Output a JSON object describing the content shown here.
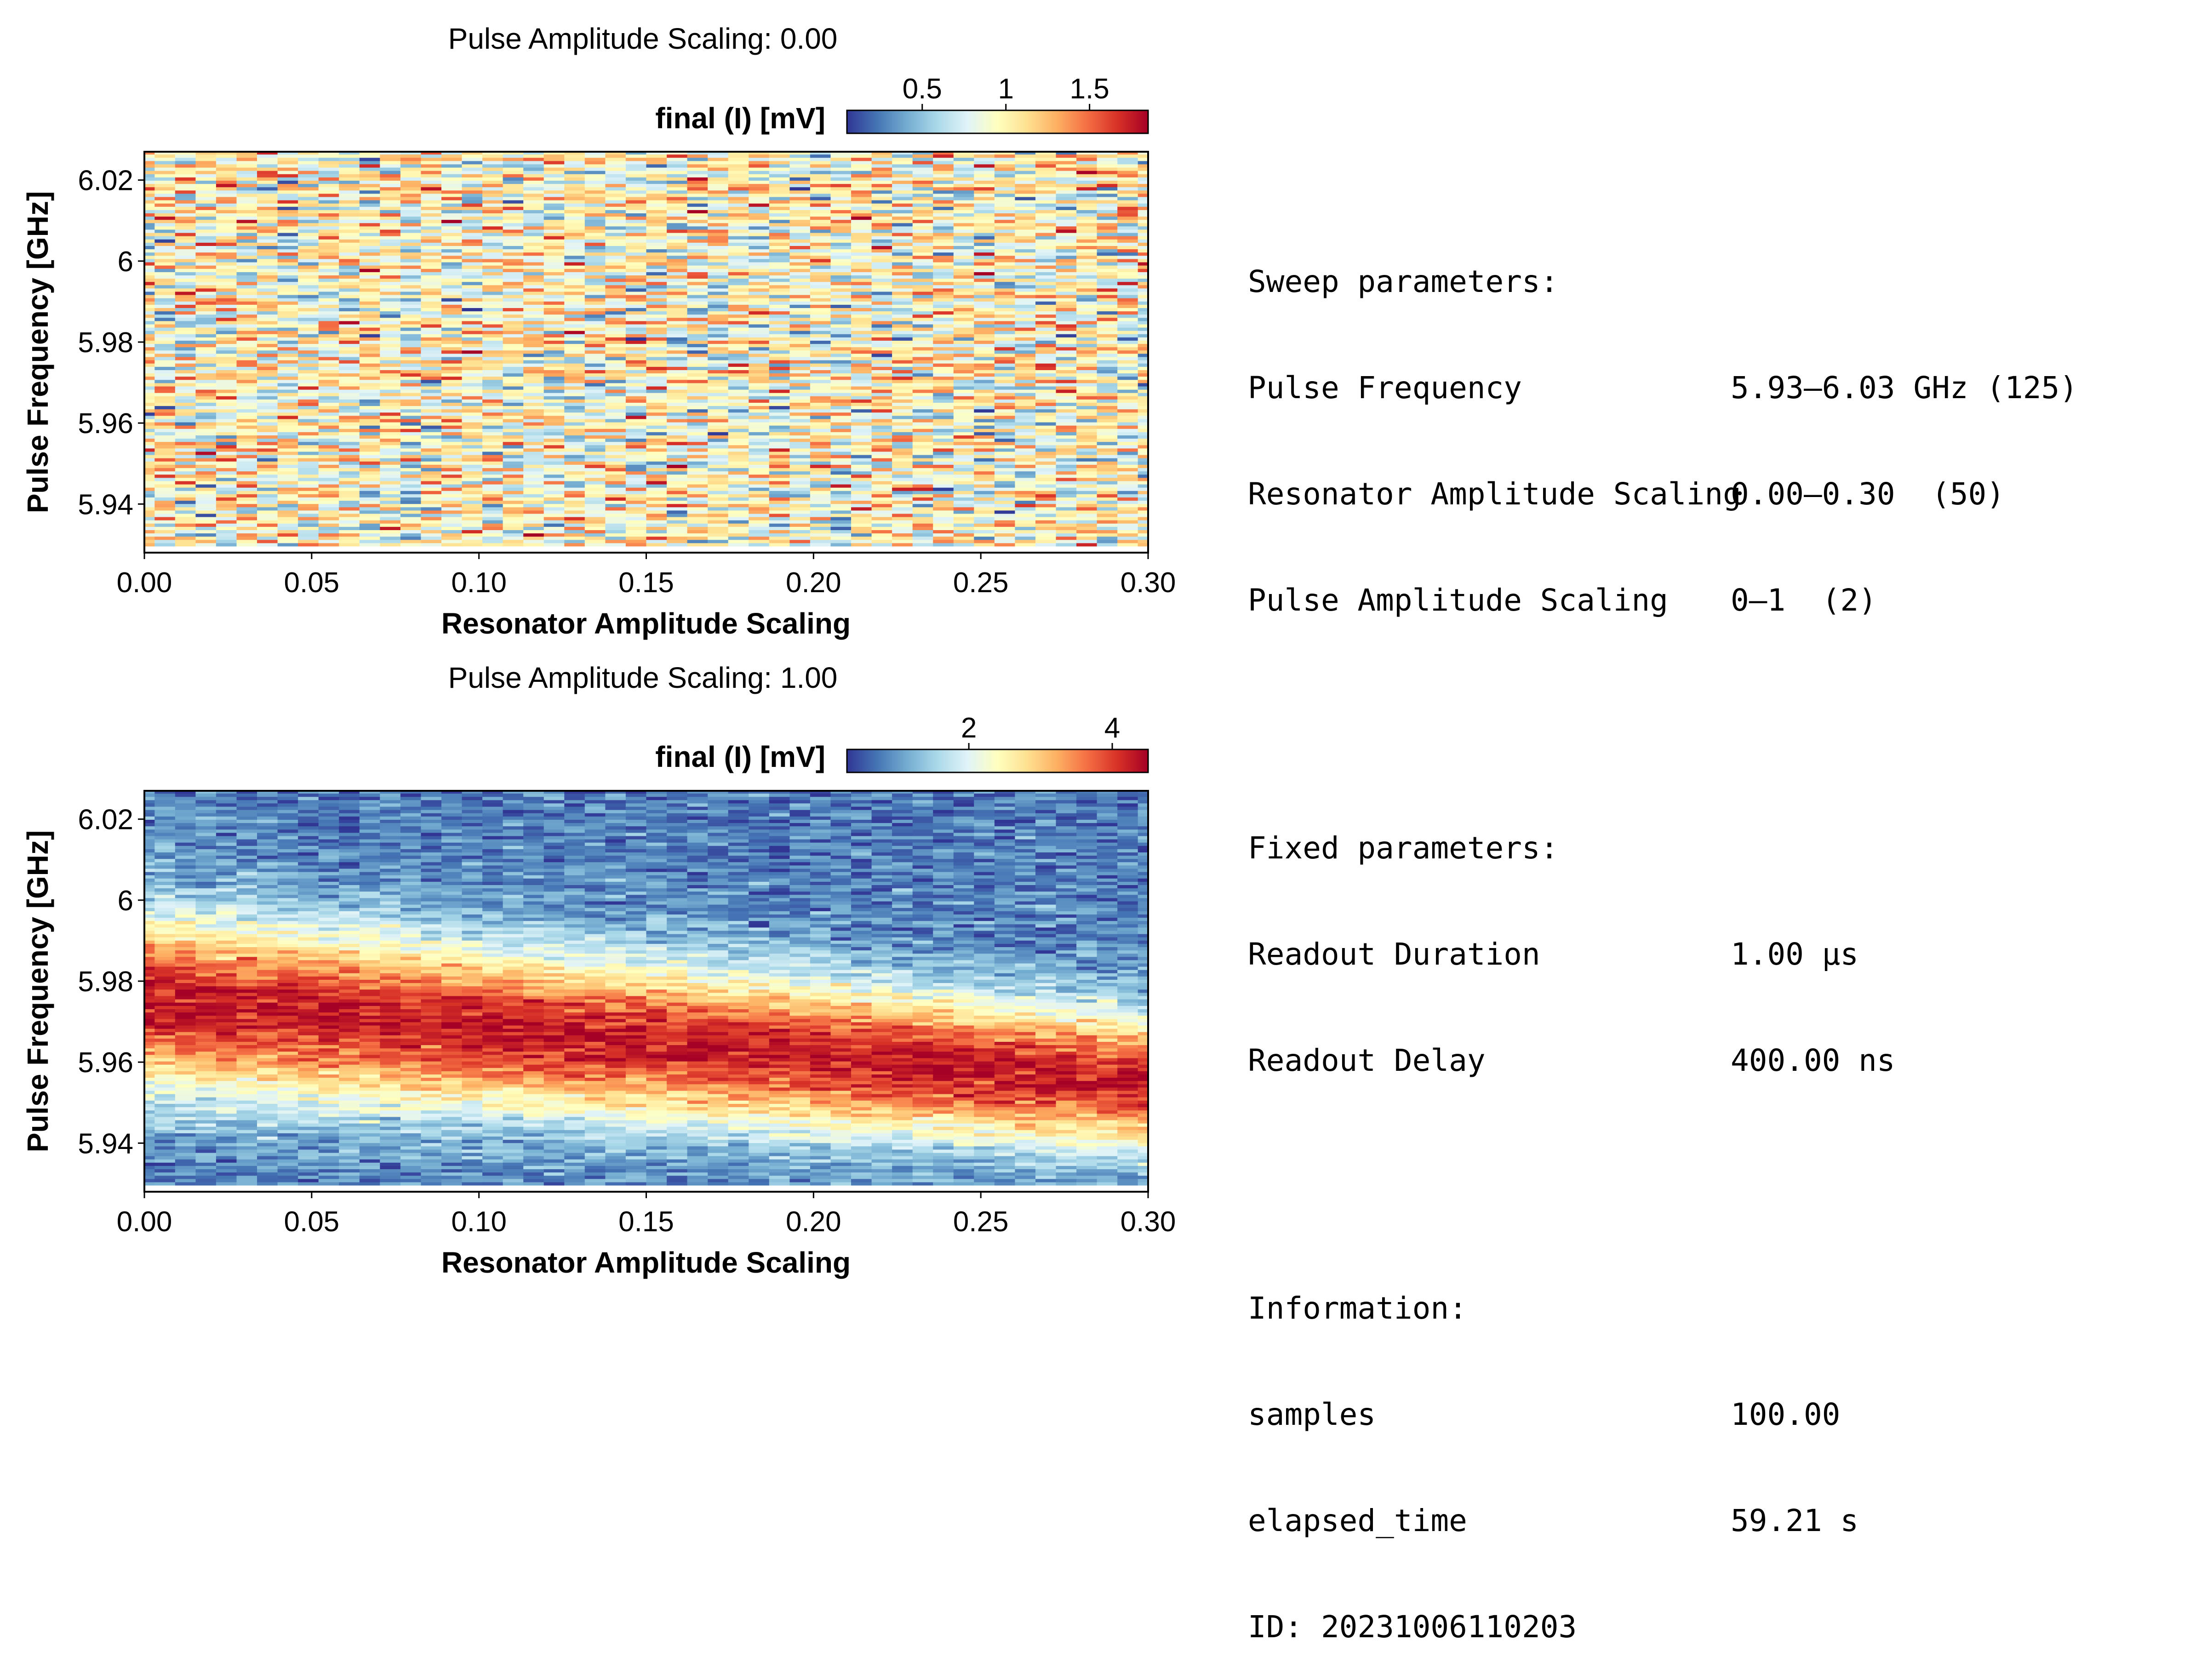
{
  "chart_data": [
    {
      "type": "heatmap",
      "title": "Pulse Amplitude Scaling: 0.00",
      "xlabel": "Resonator Amplitude Scaling",
      "ylabel": "Pulse Frequency [GHz]",
      "xlim": [
        0.0,
        0.3
      ],
      "ylim": [
        5.928,
        6.027
      ],
      "x_ticks": [
        "0.00",
        "0.05",
        "0.10",
        "0.15",
        "0.20",
        "0.25",
        "0.30"
      ],
      "x_tick_values": [
        0.0,
        0.05,
        0.1,
        0.15,
        0.2,
        0.25,
        0.3
      ],
      "y_ticks": [
        "5.94",
        "5.96",
        "5.98",
        "6",
        "6.02"
      ],
      "y_tick_values": [
        5.94,
        5.96,
        5.98,
        6.0,
        6.02
      ],
      "colormap": "RdYlBu_r",
      "colorbar": {
        "label": "final (I) [mV]",
        "range": [
          0.05,
          1.85
        ],
        "ticks": [
          "0.5",
          "1",
          "1.5"
        ],
        "tick_values": [
          0.5,
          1.0,
          1.5
        ]
      },
      "grid": {
        "nx": 50,
        "ny": 125,
        "x_range": [
          0.0,
          0.3
        ],
        "y_range": [
          5.93,
          6.03
        ]
      },
      "pattern": "noise",
      "mean_mV": 0.95
    },
    {
      "type": "heatmap",
      "title": "Pulse Amplitude Scaling: 1.00",
      "xlabel": "Resonator Amplitude Scaling",
      "ylabel": "Pulse Frequency [GHz]",
      "xlim": [
        0.0,
        0.3
      ],
      "ylim": [
        5.928,
        6.027
      ],
      "x_ticks": [
        "0.00",
        "0.05",
        "0.10",
        "0.15",
        "0.20",
        "0.25",
        "0.30"
      ],
      "x_tick_values": [
        0.0,
        0.05,
        0.1,
        0.15,
        0.2,
        0.25,
        0.3
      ],
      "y_ticks": [
        "5.94",
        "5.96",
        "5.98",
        "6",
        "6.02"
      ],
      "y_tick_values": [
        5.94,
        5.96,
        5.98,
        6.0,
        6.02
      ],
      "colormap": "RdYlBu_r",
      "colorbar": {
        "label": "final (I) [mV]",
        "range": [
          0.3,
          4.5
        ],
        "ticks": [
          "2",
          "4"
        ],
        "tick_values": [
          2,
          4
        ]
      },
      "grid": {
        "nx": 50,
        "ny": 125,
        "x_range": [
          0.0,
          0.3
        ],
        "y_range": [
          5.93,
          6.03
        ]
      },
      "pattern": "resonance",
      "resonance_center_GHz": [
        [
          0.0,
          5.975
        ],
        [
          0.3,
          5.955
        ]
      ],
      "resonance_width_GHz": [
        [
          0.0,
          0.02
        ],
        [
          0.3,
          0.015
        ]
      ],
      "peak_mV": 4.3,
      "background_mV": 0.8
    }
  ],
  "info": {
    "sweep_header": "Sweep parameters:",
    "sweep": [
      {
        "key": "Pulse Frequency",
        "value": "5.93–6.03 GHz (125)"
      },
      {
        "key": "Resonator Amplitude Scaling",
        "value": "0.00–0.30  (50)"
      },
      {
        "key": "Pulse Amplitude Scaling",
        "value": "0–1  (2)"
      }
    ],
    "fixed_header": "Fixed parameters:",
    "fixed": [
      {
        "key": "Readout Duration",
        "value": "1.00 µs"
      },
      {
        "key": "Readout Delay",
        "value": "400.00 ns"
      }
    ],
    "info_header": "Information:",
    "information": [
      {
        "key": "samples",
        "value": "100.00"
      },
      {
        "key": "elapsed_time",
        "value": "59.21 s"
      }
    ],
    "id_line": "ID: 20231006110203"
  }
}
